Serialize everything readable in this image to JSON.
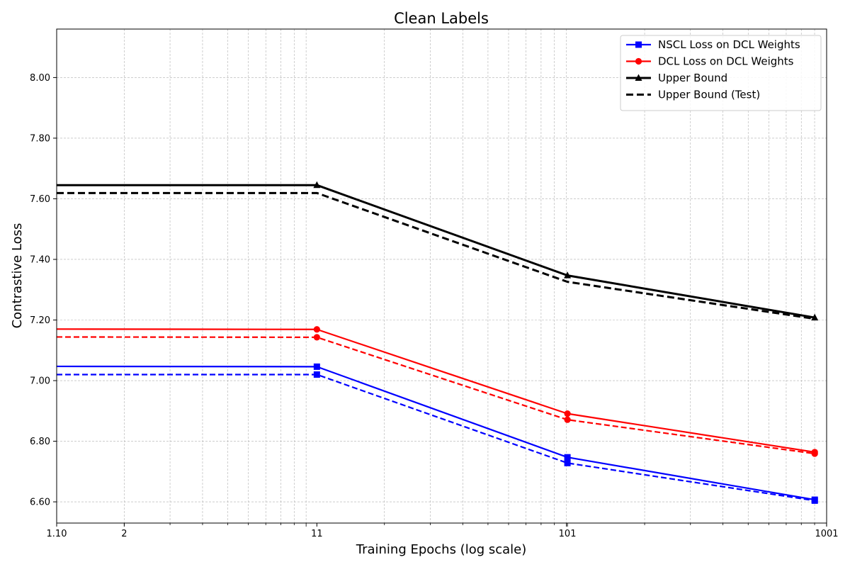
{
  "chart_data": {
    "type": "line",
    "title": "Clean Labels",
    "xlabel": "Training Epochs (log scale)",
    "ylabel": "Contrastive Loss",
    "x_scale": "log",
    "xlim": [
      1.1,
      1001
    ],
    "ylim": [
      6.53,
      8.16
    ],
    "x_ticks": [
      {
        "value": 1.1,
        "label": "1.10"
      },
      {
        "value": 2,
        "label": "2"
      },
      {
        "value": 11,
        "label": "11"
      },
      {
        "value": 101,
        "label": "101"
      },
      {
        "value": 1001,
        "label": "1001"
      }
    ],
    "y_ticks": [
      {
        "value": 6.6,
        "label": "6.60"
      },
      {
        "value": 6.8,
        "label": "6.80"
      },
      {
        "value": 7.0,
        "label": "7.00"
      },
      {
        "value": 7.2,
        "label": "7.20"
      },
      {
        "value": 7.4,
        "label": "7.40"
      },
      {
        "value": 7.6,
        "label": "7.60"
      },
      {
        "value": 7.8,
        "label": "7.80"
      },
      {
        "value": 8.0,
        "label": "8.00"
      }
    ],
    "grid": true,
    "legend_position": "top-right",
    "series": [
      {
        "name": "NSCL Loss on DCL Weights",
        "color": "#0000ff",
        "style": "solid",
        "marker": "square",
        "legend": true,
        "x": [
          1.1,
          11,
          101,
          901
        ],
        "y": [
          7.047,
          7.046,
          6.747,
          6.607
        ]
      },
      {
        "name": "DCL Loss on DCL Weights",
        "color": "#ff0000",
        "style": "solid",
        "marker": "circle",
        "legend": true,
        "x": [
          1.1,
          11,
          101,
          901
        ],
        "y": [
          7.17,
          7.169,
          6.891,
          6.764
        ]
      },
      {
        "name": "Upper Bound",
        "color": "#000000",
        "style": "solid",
        "marker": "triangle",
        "legend": true,
        "x": [
          1.1,
          11,
          101,
          901
        ],
        "y": [
          7.645,
          7.645,
          7.347,
          7.208
        ]
      },
      {
        "name": "Upper Bound (Test)",
        "color": "#000000",
        "style": "dashed",
        "marker": "none",
        "legend": true,
        "x": [
          1.1,
          11,
          101,
          901
        ],
        "y": [
          7.619,
          7.619,
          7.326,
          7.204
        ]
      },
      {
        "name": "",
        "color": "#0000ff",
        "style": "dashed",
        "marker": "square",
        "legend": false,
        "x": [
          1.1,
          11,
          101,
          901
        ],
        "y": [
          7.02,
          7.02,
          6.728,
          6.604
        ]
      },
      {
        "name": "",
        "color": "#ff0000",
        "style": "dashed",
        "marker": "circle",
        "legend": false,
        "x": [
          1.1,
          11,
          101,
          901
        ],
        "y": [
          7.144,
          7.143,
          6.871,
          6.759
        ]
      }
    ]
  }
}
